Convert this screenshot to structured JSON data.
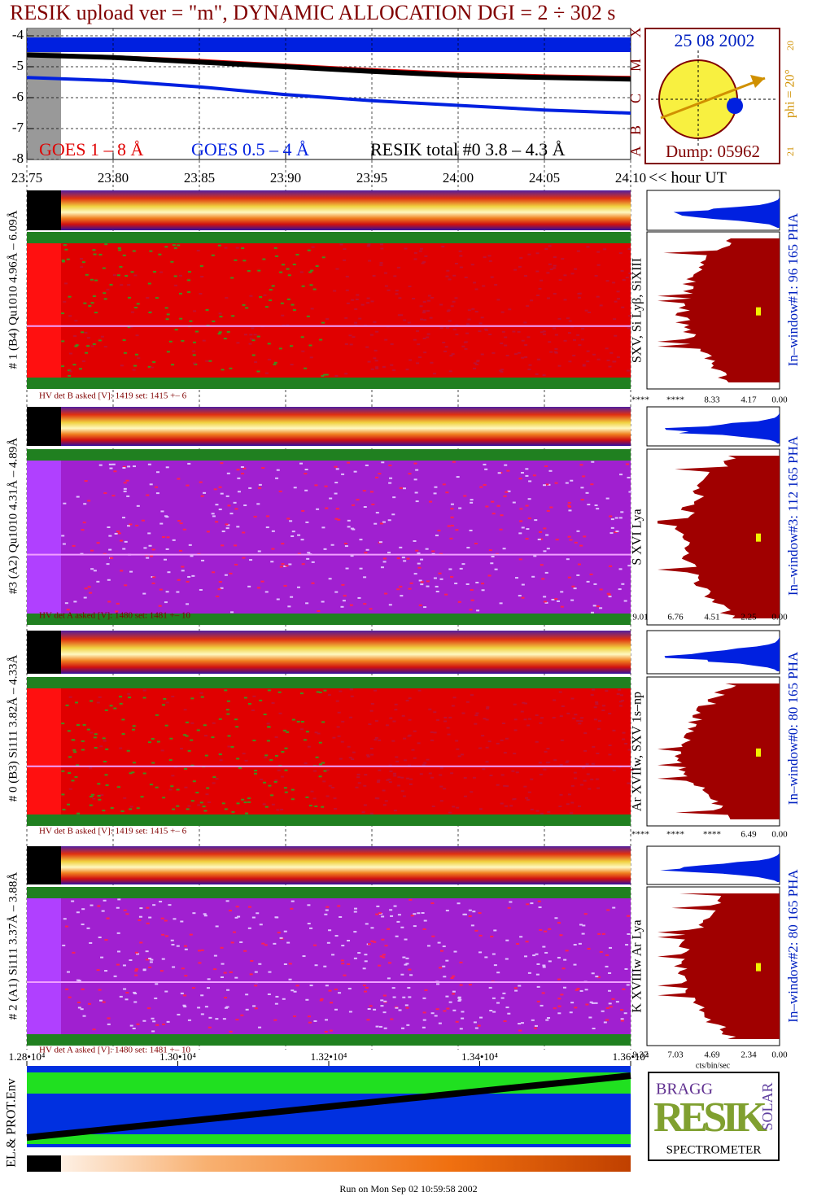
{
  "title": "RESIK upload ver = \"m\", DYNAMIC ALLOCATION  DGI =   2 ÷ 302 s",
  "chart_data": {
    "type": "line",
    "x": [
      23.75,
      23.8,
      23.85,
      23.9,
      23.95,
      24.0,
      24.05,
      24.1
    ],
    "series": [
      {
        "name": "GOES 1 – 8 Å",
        "color": "#e00000",
        "values": [
          -4.6,
          -4.68,
          -4.8,
          -4.95,
          -5.1,
          -5.22,
          -5.3,
          -5.35
        ]
      },
      {
        "name": "GOES 0.5 – 4 Å",
        "color": "#0020e0",
        "values": [
          -5.35,
          -5.45,
          -5.65,
          -5.9,
          -6.1,
          -6.25,
          -6.4,
          -6.5
        ]
      },
      {
        "name": "RESIK total #0  3.8 – 4.3 Å",
        "color": "#000000",
        "values": [
          -4.62,
          -4.7,
          -4.85,
          -5.0,
          -5.15,
          -5.28,
          -5.35,
          -5.4
        ]
      }
    ],
    "xlim": [
      23.75,
      24.1
    ],
    "xticks": [
      {
        "value": 23.75,
        "label": "23.75"
      },
      {
        "value": 23.8,
        "label": "23.80"
      },
      {
        "value": 23.85,
        "label": "23.85"
      },
      {
        "value": 23.9,
        "label": "23.90"
      },
      {
        "value": 23.95,
        "label": "23.95"
      },
      {
        "value": 24.0,
        "label": "24.00"
      },
      {
        "value": 24.05,
        "label": "24.05"
      },
      {
        "value": 24.1,
        "label": "24.10"
      }
    ],
    "x_label": "<< hour UT",
    "ylim": [
      -8,
      -4
    ],
    "yticks": [
      -4,
      -5,
      -6,
      -7,
      -8
    ],
    "grid": true
  },
  "sun_panel": {
    "date": "25 08 2002",
    "dump": "Dump: 05962",
    "phi": "phi = 20°",
    "top_mark": "20",
    "bottom_mark": "21",
    "classes": [
      "A",
      "B",
      "C",
      "M",
      "X"
    ]
  },
  "panels": [
    {
      "label": "# 1 (B4) Qu1010 4.96Å – 6.09Å",
      "lines": "SXV, Si Lyβ, SiXIII",
      "window": "In–window#1:   96 165  PHA",
      "hv": "HV det B asked [V]:  1419 set:  1415  +–    6",
      "scale": [
        "****",
        "****",
        "8.33",
        "4.17",
        "0.00"
      ],
      "detector": "B"
    },
    {
      "label": "#3 (A2) Qu1010  4.31Å – 4.89Å",
      "lines": "S XVI Lya",
      "window": "In–window#3:  112 165  PHA",
      "hv": "HV det A asked [V]:  1480 set:  1481  +–    10",
      "scale": [
        "9.01",
        "6.76",
        "4.51",
        "2.25",
        "0.00"
      ],
      "detector": "A"
    },
    {
      "label": "# 0 (B3) Si111  3.82Å – 4.33Å",
      "lines": "Ar XVIIw,  SXV 1s–np",
      "window": "In–window#0:   80 165  PHA",
      "hv": "HV det B asked [V]:  1419 set:  1415  +–    6",
      "scale": [
        "****",
        "****",
        "****",
        "6.49",
        "0.00"
      ],
      "detector": "B"
    },
    {
      "label": "# 2 (A1) Si111  3.37Å – 3.88Å",
      "lines": "K XVIIIw  Ar Lya",
      "window": "In–window#2:   80 165  PHA",
      "hv": "HV det A asked [V]:  1480 set:  1481  +–    10",
      "scale": [
        "9.37",
        "7.03",
        "4.69",
        "2.34",
        "0.00"
      ],
      "detector": "A"
    }
  ],
  "scale_unit": "cts/bin/sec",
  "env_panel": {
    "label": "EL.& PROT.Env",
    "xlim": [
      12800,
      13600
    ],
    "xticks": [
      {
        "value": 12800,
        "label": "1.28•10⁴"
      },
      {
        "value": 13000,
        "label": "1.30•10⁴"
      },
      {
        "value": 13200,
        "label": "1.32•10⁴"
      },
      {
        "value": 13400,
        "label": "1.34•10⁴"
      },
      {
        "value": 13600,
        "label": "1.36•10⁴"
      }
    ]
  },
  "logo": {
    "top": "BRAGG",
    "main": "RESIK",
    "side": "SOLAR",
    "bottom": "SPECTROMETER"
  },
  "footer": "Run on Mon Sep 02 10:59:58 2002"
}
